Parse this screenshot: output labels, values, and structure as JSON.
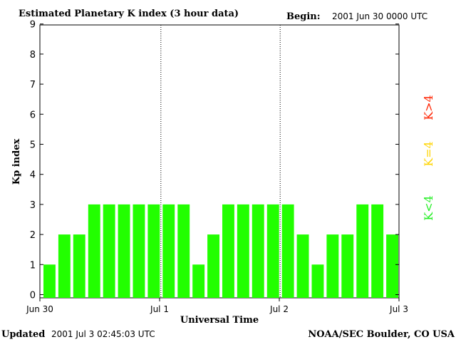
{
  "header": {
    "title": "Estimated Planetary K index (3 hour data)",
    "begin_label": "Begin:",
    "begin_value": "2001 Jun 30 0000 UTC"
  },
  "footer": {
    "updated_label": "Updated",
    "updated_value": "2001 Jul  3 02:45:03 UTC",
    "source": "NOAA/SEC Boulder, CO USA"
  },
  "legend": [
    {
      "label": "K<4",
      "color": "#22ee22"
    },
    {
      "label": "K=4",
      "color": "#ffd400"
    },
    {
      "label": "K>4",
      "color": "#ff2200"
    }
  ],
  "chart_data": {
    "type": "bar",
    "title": "Estimated Planetary K index (3 hour data)",
    "xlabel": "Universal Time",
    "ylabel": "Kp index",
    "ylim": [
      0,
      9
    ],
    "yticks": [
      "0",
      "1",
      "2",
      "3",
      "4",
      "5",
      "6",
      "7",
      "8",
      "9"
    ],
    "xticks": [
      "Jun 30",
      "Jul 1",
      "Jul 2",
      "Jul 3"
    ],
    "day_separators": [
      "Jul 1",
      "Jul 2"
    ],
    "bar_color": "#22ff00",
    "values": [
      1,
      2,
      2,
      3,
      3,
      3,
      3,
      3,
      3,
      3,
      1,
      2,
      3,
      3,
      3,
      3,
      3,
      2,
      1,
      2,
      2,
      3,
      3,
      2
    ]
  }
}
